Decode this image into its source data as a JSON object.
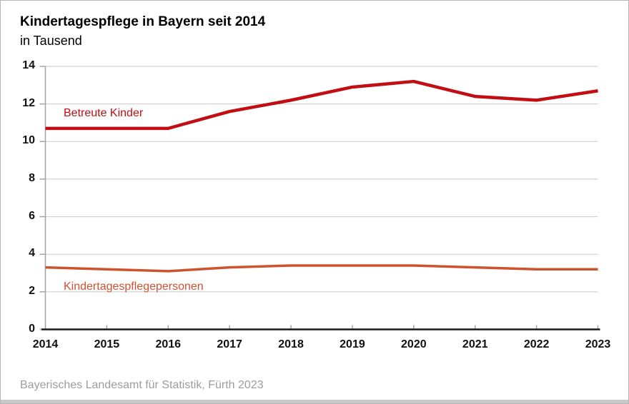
{
  "header": {
    "title": "Kindertagespflege in Bayern seit 2014",
    "subtitle": "in Tausend"
  },
  "footer": {
    "source": "Bayerisches Landesamt für Statistik, Fürth 2023"
  },
  "colors": {
    "grid": "#c9c9c9",
    "tick": "#a3a3a3",
    "axis": "#1a1a1a",
    "series1": "#c00e12",
    "series2": "#cd5330",
    "source_text": "#9d9d9d"
  },
  "chart_data": {
    "type": "line",
    "title": "Kindertagespflege in Bayern seit 2014",
    "unit_label": "in Tausend",
    "x": [
      2014,
      2015,
      2016,
      2017,
      2018,
      2019,
      2020,
      2021,
      2022,
      2023
    ],
    "y_ticks": [
      0,
      2,
      4,
      6,
      8,
      10,
      12,
      14
    ],
    "ylim": [
      0,
      14
    ],
    "grid": true,
    "legend_position": "inline-labels",
    "series": [
      {
        "name": "Betreute Kinder",
        "color": "#c00e12",
        "stroke_width": 4.5,
        "values": [
          10.7,
          10.7,
          10.7,
          11.6,
          12.2,
          12.9,
          13.2,
          12.4,
          12.2,
          12.7
        ]
      },
      {
        "name": "Kindertagespflegepersonen",
        "color": "#cd5330",
        "stroke_width": 3.5,
        "values": [
          3.3,
          3.2,
          3.1,
          3.3,
          3.4,
          3.4,
          3.4,
          3.3,
          3.2,
          3.2
        ]
      }
    ]
  }
}
